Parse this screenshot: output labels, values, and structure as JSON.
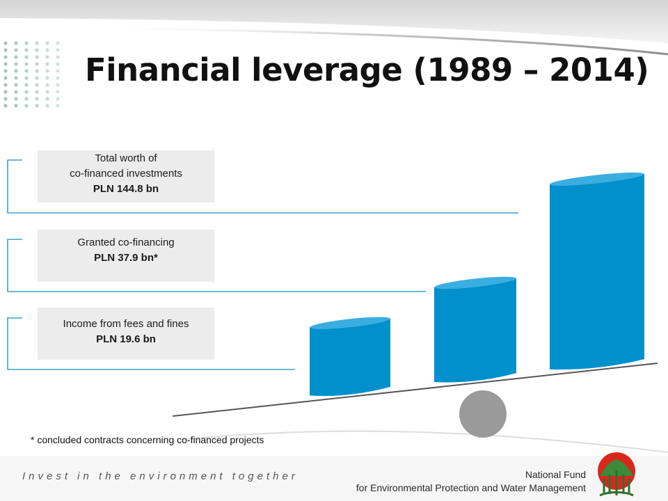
{
  "slide": {
    "title": "Financial leverage (1989 – 2014)",
    "footnote": "* concluded contracts concerning co-financed projects",
    "tagline": "Invest in the environment together",
    "organization": {
      "line1": "National Fund",
      "line2": "for Environmental Protection and Water Management"
    }
  },
  "labels": [
    {
      "line1": "Total worth of",
      "line2": "co-financed investments",
      "value": "PLN 144.8 bn"
    },
    {
      "line1": "Granted co-financing",
      "line2": "",
      "value": "PLN 37.9 bn*"
    },
    {
      "line1": "Income from fees and fines",
      "line2": "",
      "value": "PLN 19.6 bn"
    }
  ],
  "chart_data": {
    "type": "bar",
    "title": "Financial leverage (1989 – 2014)",
    "categories": [
      "Income from fees and fines",
      "Granted co-financing",
      "Total worth of co-financed investments"
    ],
    "values": [
      19.6,
      37.9,
      144.8
    ],
    "unit": "PLN bn",
    "colors": {
      "bar": "#0090cc",
      "bar_top": "#3aaee0",
      "lever": "#555555",
      "fulcrum": "#9a9a9a",
      "bracket": "#3aa0c8"
    }
  }
}
